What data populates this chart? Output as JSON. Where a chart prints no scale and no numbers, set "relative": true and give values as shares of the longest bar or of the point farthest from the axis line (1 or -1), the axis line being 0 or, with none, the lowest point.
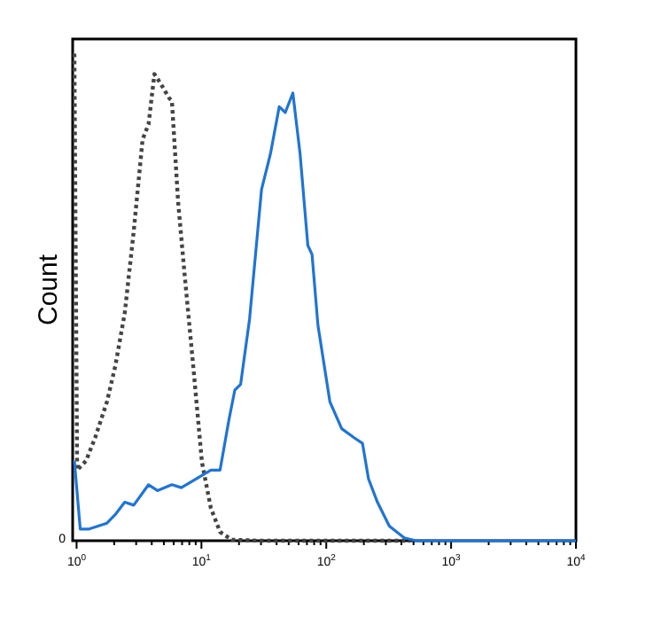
{
  "chart_data": {
    "type": "line",
    "ylabel": "Count",
    "relative": true,
    "log": "x",
    "xlim": [
      0.93,
      10000
    ],
    "xticks": [
      {
        "value": 1,
        "label": "10$^{0}$"
      },
      {
        "value": 2,
        "label": null
      },
      {
        "value": 3,
        "label": null
      },
      {
        "value": 4,
        "label": null
      },
      {
        "value": 5,
        "label": null
      },
      {
        "value": 6,
        "label": null
      },
      {
        "value": 7,
        "label": null
      },
      {
        "value": 8,
        "label": null
      },
      {
        "value": 9,
        "label": null
      },
      {
        "value": 10,
        "label": "10$^{1}$"
      },
      {
        "value": 20,
        "label": null
      },
      {
        "value": 30,
        "label": null
      },
      {
        "value": 40,
        "label": null
      },
      {
        "value": 50,
        "label": null
      },
      {
        "value": 60,
        "label": null
      },
      {
        "value": 70,
        "label": null
      },
      {
        "value": 80,
        "label": null
      },
      {
        "value": 90,
        "label": null
      },
      {
        "value": 100,
        "label": "10$^{2}$"
      },
      {
        "value": 200,
        "label": null
      },
      {
        "value": 300,
        "label": null
      },
      {
        "value": 400,
        "label": null
      },
      {
        "value": 500,
        "label": null
      },
      {
        "value": 600,
        "label": null
      },
      {
        "value": 700,
        "label": null
      },
      {
        "value": 800,
        "label": null
      },
      {
        "value": 900,
        "label": null
      },
      {
        "value": 1000,
        "label": "10$^{3}$"
      },
      {
        "value": 2000,
        "label": null
      },
      {
        "value": 3000,
        "label": null
      },
      {
        "value": 4000,
        "label": null
      },
      {
        "value": 5000,
        "label": null
      },
      {
        "value": 6000,
        "label": null
      },
      {
        "value": 7000,
        "label": null
      },
      {
        "value": 8000,
        "label": null
      },
      {
        "value": 9000,
        "label": null
      },
      {
        "value": 10000,
        "label": "10$^{4}$"
      }
    ],
    "annotations": [
      "0"
    ],
    "series": [
      {
        "color": "#444444",
        "line_style": "dotted",
        "x": [
          0.96,
          1.01,
          1.19,
          1.41,
          1.75,
          2.04,
          2.43,
          2.87,
          3.38,
          3.77,
          4.2,
          4.7,
          5.5,
          5.8,
          6.5,
          7.3,
          8.6,
          10.1,
          11.9,
          14.1,
          17.5,
          30,
          470
        ],
        "values": [
          1.0,
          0.145,
          0.164,
          0.212,
          0.285,
          0.358,
          0.467,
          0.636,
          0.824,
          0.855,
          0.958,
          0.939,
          0.909,
          0.903,
          0.697,
          0.552,
          0.358,
          0.161,
          0.067,
          0.018,
          0.002,
          0,
          0
        ]
      },
      {
        "color": "#1f74d6",
        "line_style": "solid",
        "x": [
          0.96,
          1.07,
          1.26,
          1.75,
          2.06,
          2.43,
          2.87,
          3.77,
          4.44,
          5.8,
          6.9,
          9.1,
          11.9,
          14.1,
          16.6,
          18.5,
          20.6,
          24.3,
          30.3,
          35.7,
          42,
          46.9,
          54,
          61.7,
          71.2,
          76.9,
          85.8,
          107,
          133,
          166,
          195,
          218,
          257,
          320,
          421,
          524,
          10000
        ],
        "values": [
          0.164,
          0.024,
          0.024,
          0.036,
          0.055,
          0.079,
          0.073,
          0.115,
          0.103,
          0.115,
          0.109,
          0.127,
          0.145,
          0.145,
          0.248,
          0.309,
          0.321,
          0.455,
          0.721,
          0.794,
          0.891,
          0.879,
          0.919,
          0.794,
          0.606,
          0.588,
          0.442,
          0.285,
          0.23,
          0.212,
          0.2,
          0.127,
          0.079,
          0.03,
          0.006,
          0,
          0
        ]
      }
    ]
  }
}
